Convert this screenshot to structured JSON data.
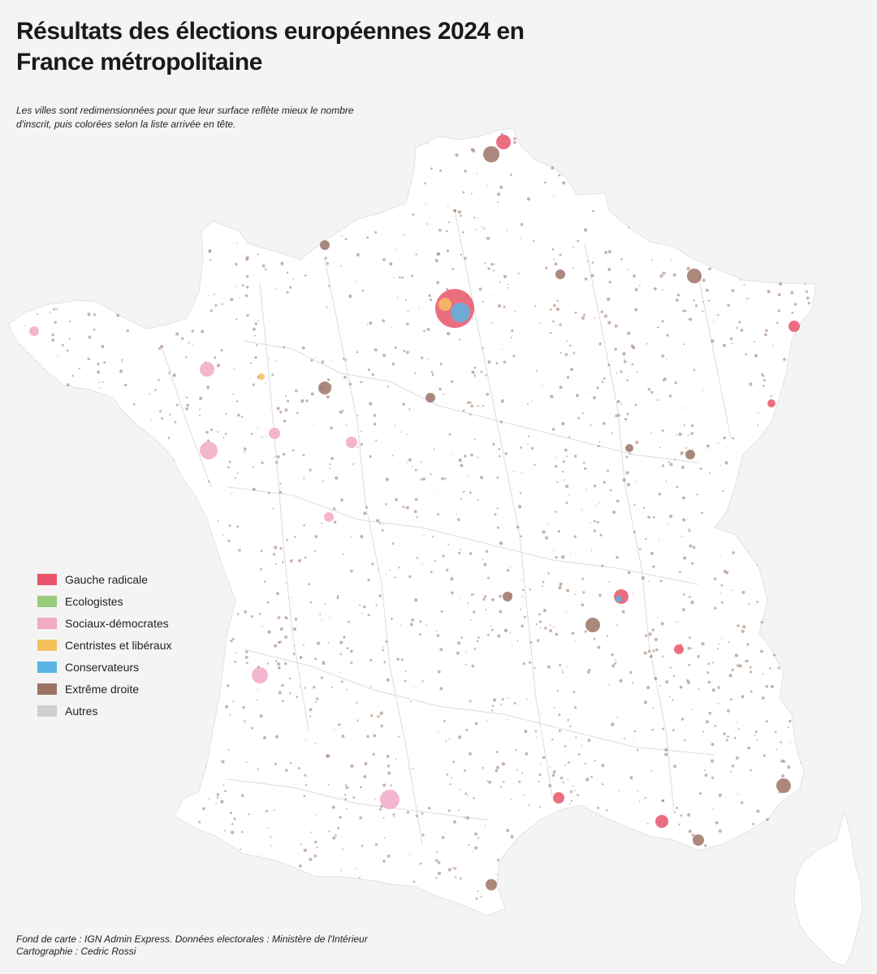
{
  "title": "Résultats des élections européennes 2024 en France métropolitaine",
  "subtitle": "Les villes sont redimensionnées pour que leur surface reflète mieux le nombre d'inscrit, puis colorées selon la liste arrivée en tête.",
  "legend": [
    {
      "label": "Gauche radicale",
      "color": "#e8556a"
    },
    {
      "label": "Ecologistes",
      "color": "#98cc7c"
    },
    {
      "label": "Sociaux-démocrates",
      "color": "#f1a9c6"
    },
    {
      "label": "Centristes et libéraux",
      "color": "#f3c25e"
    },
    {
      "label": "Conservateurs",
      "color": "#5ab5e2"
    },
    {
      "label": "Extrême droite",
      "color": "#9b7465"
    },
    {
      "label": "Autres",
      "color": "#cfcfcf"
    }
  ],
  "credits": {
    "line1": "Fond de carte : IGN Admin Express. Données electorales : Ministère de l'Intérieur",
    "line2": "Cartographie : Cedric Rossi"
  },
  "colors": {
    "land": "#ffffff",
    "borders": "#d9d9d9",
    "background": "#f4f4f4"
  }
}
